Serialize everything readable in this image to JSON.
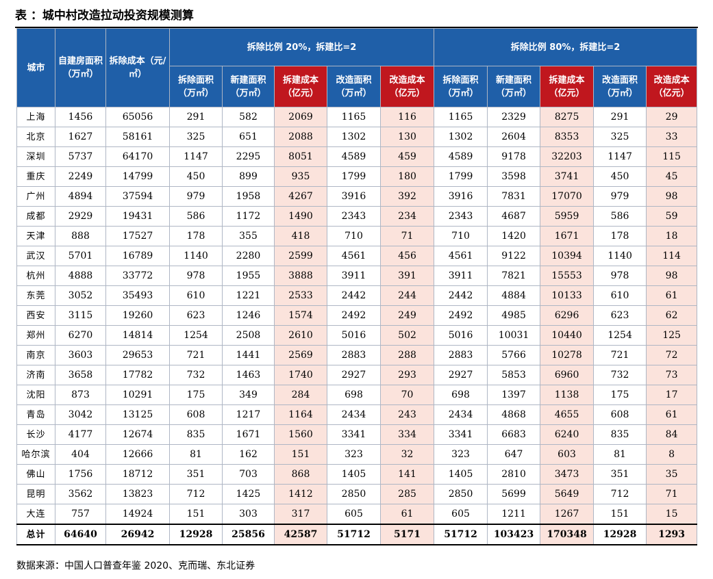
{
  "title": "表 ：城中村改造拉动投资规模测算",
  "headers": {
    "city": "城市",
    "self_built_area": "自建房面积（万㎡）",
    "demolition_cost": "拆除成本（元/㎡）",
    "scenario1": "拆除比例 20%，拆建比=2",
    "scenario2": "拆除比例 80%，拆建比=2",
    "sub": [
      "拆除面积（万㎡）",
      "新建面积（万㎡）",
      "拆建成本（亿元）",
      "改造面积（万㎡）",
      "改造成本（亿元）"
    ]
  },
  "rows": [
    [
      "上海",
      "1456",
      "65056",
      "291",
      "582",
      "2069",
      "1165",
      "116",
      "1165",
      "2329",
      "8275",
      "291",
      "29"
    ],
    [
      "北京",
      "1627",
      "58161",
      "325",
      "651",
      "2088",
      "1302",
      "130",
      "1302",
      "2604",
      "8353",
      "325",
      "33"
    ],
    [
      "深圳",
      "5737",
      "64170",
      "1147",
      "2295",
      "8051",
      "4589",
      "459",
      "4589",
      "9178",
      "32203",
      "1147",
      "115"
    ],
    [
      "重庆",
      "2249",
      "14799",
      "450",
      "899",
      "935",
      "1799",
      "180",
      "1799",
      "3598",
      "3741",
      "450",
      "45"
    ],
    [
      "广州",
      "4894",
      "37594",
      "979",
      "1958",
      "4267",
      "3916",
      "392",
      "3916",
      "7831",
      "17070",
      "979",
      "98"
    ],
    [
      "成都",
      "2929",
      "19431",
      "586",
      "1172",
      "1490",
      "2343",
      "234",
      "2343",
      "4687",
      "5959",
      "586",
      "59"
    ],
    [
      "天津",
      "888",
      "17527",
      "178",
      "355",
      "418",
      "710",
      "71",
      "710",
      "1420",
      "1671",
      "178",
      "18"
    ],
    [
      "武汉",
      "5701",
      "16789",
      "1140",
      "2280",
      "2599",
      "4561",
      "456",
      "4561",
      "9122",
      "10394",
      "1140",
      "114"
    ],
    [
      "杭州",
      "4888",
      "33772",
      "978",
      "1955",
      "3888",
      "3911",
      "391",
      "3911",
      "7821",
      "15553",
      "978",
      "98"
    ],
    [
      "东莞",
      "3052",
      "35493",
      "610",
      "1221",
      "2533",
      "2442",
      "244",
      "2442",
      "4884",
      "10133",
      "610",
      "61"
    ],
    [
      "西安",
      "3115",
      "19260",
      "623",
      "1246",
      "1574",
      "2492",
      "249",
      "2492",
      "4985",
      "6296",
      "623",
      "62"
    ],
    [
      "郑州",
      "6270",
      "14814",
      "1254",
      "2508",
      "2610",
      "5016",
      "502",
      "5016",
      "10031",
      "10440",
      "1254",
      "125"
    ],
    [
      "南京",
      "3603",
      "29653",
      "721",
      "1441",
      "2569",
      "2883",
      "288",
      "2883",
      "5766",
      "10278",
      "721",
      "72"
    ],
    [
      "济南",
      "3658",
      "17782",
      "732",
      "1463",
      "1740",
      "2927",
      "293",
      "2927",
      "5853",
      "6960",
      "732",
      "73"
    ],
    [
      "沈阳",
      "873",
      "10291",
      "175",
      "349",
      "284",
      "698",
      "70",
      "698",
      "1397",
      "1138",
      "175",
      "17"
    ],
    [
      "青岛",
      "3042",
      "13125",
      "608",
      "1217",
      "1164",
      "2434",
      "243",
      "2434",
      "4868",
      "4655",
      "608",
      "61"
    ],
    [
      "长沙",
      "4177",
      "12674",
      "835",
      "1671",
      "1560",
      "3341",
      "334",
      "3341",
      "6683",
      "6240",
      "835",
      "84"
    ],
    [
      "哈尔滨",
      "404",
      "12666",
      "81",
      "162",
      "151",
      "323",
      "32",
      "323",
      "647",
      "603",
      "81",
      "8"
    ],
    [
      "佛山",
      "1756",
      "18712",
      "351",
      "703",
      "868",
      "1405",
      "141",
      "1405",
      "2810",
      "3473",
      "351",
      "35"
    ],
    [
      "昆明",
      "3562",
      "13823",
      "712",
      "1425",
      "1412",
      "2850",
      "285",
      "2850",
      "5699",
      "5649",
      "712",
      "71"
    ],
    [
      "大连",
      "757",
      "14924",
      "151",
      "303",
      "317",
      "605",
      "61",
      "605",
      "1211",
      "1267",
      "151",
      "15"
    ]
  ],
  "total": [
    "总计",
    "64640",
    "26942",
    "12928",
    "25856",
    "42587",
    "51712",
    "5171",
    "51712",
    "103423",
    "170348",
    "12928",
    "1293"
  ],
  "source": "数据来源：中国人口普查年鉴 2020、克而瑞、东北证券",
  "colors": {
    "header_blue": "#1f5fa8",
    "header_red": "#c0171e",
    "pink_cell": "#fbe3dc"
  }
}
